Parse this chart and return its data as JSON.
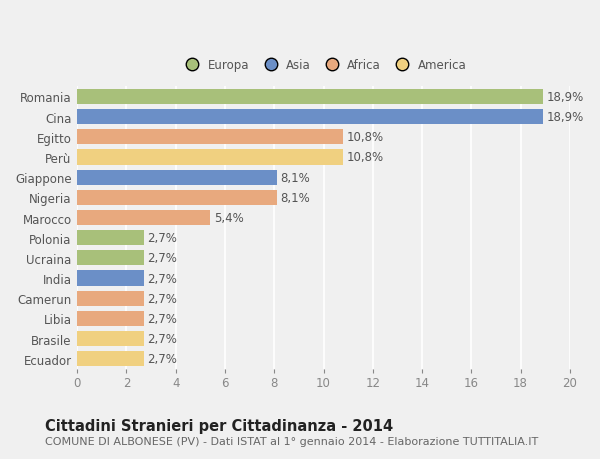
{
  "categories": [
    "Romania",
    "Cina",
    "Egitto",
    "Perù",
    "Giappone",
    "Nigeria",
    "Marocco",
    "Polonia",
    "Ucraina",
    "India",
    "Camerun",
    "Libia",
    "Brasile",
    "Ecuador"
  ],
  "values": [
    18.9,
    18.9,
    10.8,
    10.8,
    8.1,
    8.1,
    5.4,
    2.7,
    2.7,
    2.7,
    2.7,
    2.7,
    2.7,
    2.7
  ],
  "labels": [
    "18,9%",
    "18,9%",
    "10,8%",
    "10,8%",
    "8,1%",
    "8,1%",
    "5,4%",
    "2,7%",
    "2,7%",
    "2,7%",
    "2,7%",
    "2,7%",
    "2,7%",
    "2,7%"
  ],
  "colors": [
    "#a8c07a",
    "#6b8fc7",
    "#e8a97e",
    "#f0d080",
    "#6b8fc7",
    "#e8a97e",
    "#e8a97e",
    "#a8c07a",
    "#a8c07a",
    "#6b8fc7",
    "#e8a97e",
    "#e8a97e",
    "#f0d080",
    "#f0d080"
  ],
  "legend_labels": [
    "Europa",
    "Asia",
    "Africa",
    "America"
  ],
  "legend_colors": [
    "#a8c07a",
    "#6b8fc7",
    "#e8a97e",
    "#f0d080"
  ],
  "title": "Cittadini Stranieri per Cittadinanza - 2014",
  "subtitle": "COMUNE DI ALBONESE (PV) - Dati ISTAT al 1° gennaio 2014 - Elaborazione TUTTITALIA.IT",
  "xlim": [
    0,
    20
  ],
  "xticks": [
    0,
    2,
    4,
    6,
    8,
    10,
    12,
    14,
    16,
    18,
    20
  ],
  "background_color": "#f0f0f0",
  "plot_bg_color": "#f0f0f0",
  "grid_color": "#ffffff",
  "bar_height": 0.75,
  "label_fontsize": 8.5,
  "title_fontsize": 10.5,
  "subtitle_fontsize": 8.0,
  "ytick_fontsize": 8.5,
  "xtick_fontsize": 8.5
}
